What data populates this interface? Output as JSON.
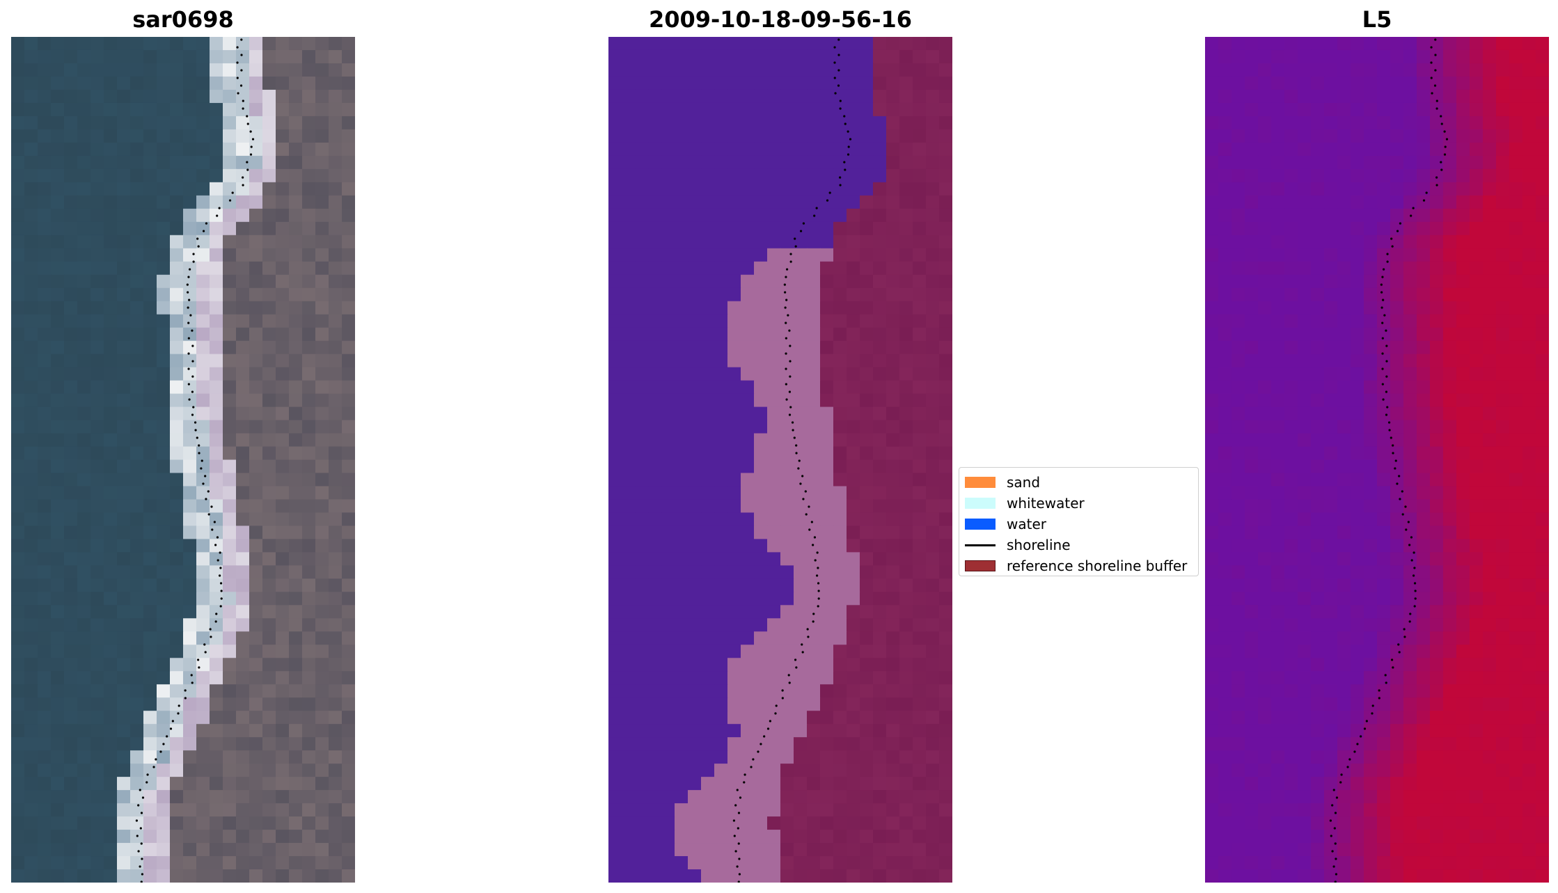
{
  "panels": [
    {
      "id": "rgb",
      "title": "sar0698"
    },
    {
      "id": "classified",
      "title": "2009-10-18-09-56-16"
    },
    {
      "id": "index",
      "title": "L5"
    }
  ],
  "legend": {
    "items": [
      {
        "label": "sand",
        "kind": "patch",
        "color": "#ff8c3b"
      },
      {
        "label": "whitewater",
        "kind": "patch",
        "color": "#ccfcfc"
      },
      {
        "label": "water",
        "kind": "patch",
        "color": "#0a5cff"
      },
      {
        "label": "shoreline",
        "kind": "line",
        "color": "#000000"
      },
      {
        "label": "reference shoreline buffer",
        "kind": "patch",
        "color": "#9e2f33",
        "edge": "#5a1418"
      }
    ]
  },
  "colors": {
    "water_rgb": "#2e4a5a",
    "land_rgb": "#5a5560",
    "classified_water": "#52219a",
    "classified_sand": "#a76a9c",
    "classified_buffer": "#7a1e54",
    "index_low": "#6d10a0",
    "index_high": "#c1073a"
  }
}
